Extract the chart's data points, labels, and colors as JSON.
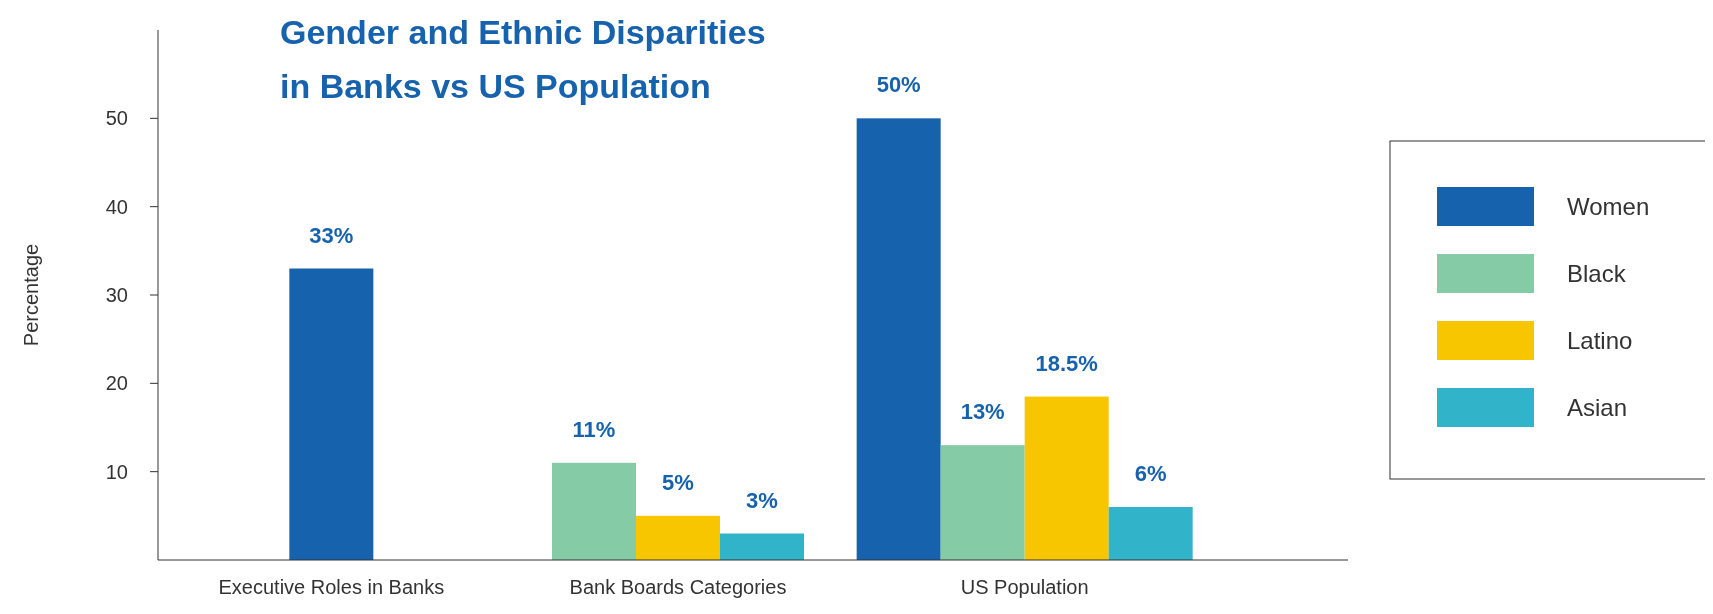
{
  "chart_data": {
    "type": "bar",
    "title": "Gender and Ethnic Disparities in Banks vs US Population",
    "ylabel": "Percentage",
    "categories": [
      "Executive Roles in Banks",
      "Bank Boards Categories",
      "US Population"
    ],
    "series": [
      {
        "name": "Women",
        "color": "#1762ad",
        "values": [
          33,
          null,
          50
        ],
        "value_labels": [
          "33%",
          null,
          "50%"
        ]
      },
      {
        "name": "Black",
        "color": "#84cba6",
        "values": [
          null,
          11,
          13
        ],
        "value_labels": [
          null,
          "11%",
          "13%"
        ]
      },
      {
        "name": "Latino",
        "color": "#f7c600",
        "values": [
          null,
          5,
          18.5
        ],
        "value_labels": [
          null,
          "5%",
          "18.5%"
        ]
      },
      {
        "name": "Asian",
        "color": "#31b3c9",
        "values": [
          null,
          3,
          6
        ],
        "value_labels": [
          null,
          "3%",
          "6%"
        ]
      }
    ],
    "ylim": [
      0,
      60
    ],
    "yticks": [
      10,
      20,
      30,
      40,
      50
    ],
    "legend": "right",
    "grid": false
  }
}
